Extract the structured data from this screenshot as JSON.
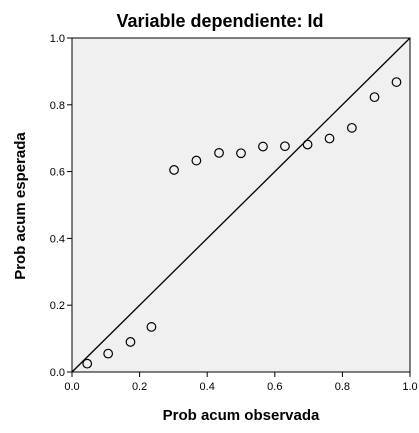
{
  "chart_data": {
    "type": "scatter",
    "title": "Variable dependiente: Id",
    "xlabel": "Prob acum observada",
    "ylabel": "Prob acum esperada",
    "xlim": [
      0.0,
      1.0
    ],
    "ylim": [
      0.0,
      1.0
    ],
    "xticks": [
      "0.0",
      "0.2",
      "0.4",
      "0.6",
      "0.8",
      "1.0"
    ],
    "yticks": [
      "0.0",
      "0.2",
      "0.4",
      "0.6",
      "0.8",
      "1.0"
    ],
    "grid": false,
    "reference_line": [
      [
        0,
        0
      ],
      [
        1,
        1
      ]
    ],
    "points": [
      {
        "x": 0.045,
        "y": 0.025
      },
      {
        "x": 0.107,
        "y": 0.055
      },
      {
        "x": 0.173,
        "y": 0.09
      },
      {
        "x": 0.235,
        "y": 0.135
      },
      {
        "x": 0.302,
        "y": 0.605
      },
      {
        "x": 0.368,
        "y": 0.633
      },
      {
        "x": 0.435,
        "y": 0.656
      },
      {
        "x": 0.5,
        "y": 0.655
      },
      {
        "x": 0.565,
        "y": 0.675
      },
      {
        "x": 0.63,
        "y": 0.676
      },
      {
        "x": 0.697,
        "y": 0.681
      },
      {
        "x": 0.762,
        "y": 0.699
      },
      {
        "x": 0.828,
        "y": 0.731
      },
      {
        "x": 0.895,
        "y": 0.823
      },
      {
        "x": 0.96,
        "y": 0.868
      }
    ],
    "colors": {
      "plot_background": "#f0f0f0",
      "frame": "#000000",
      "marker_stroke": "#000000",
      "line": "#000000"
    }
  }
}
